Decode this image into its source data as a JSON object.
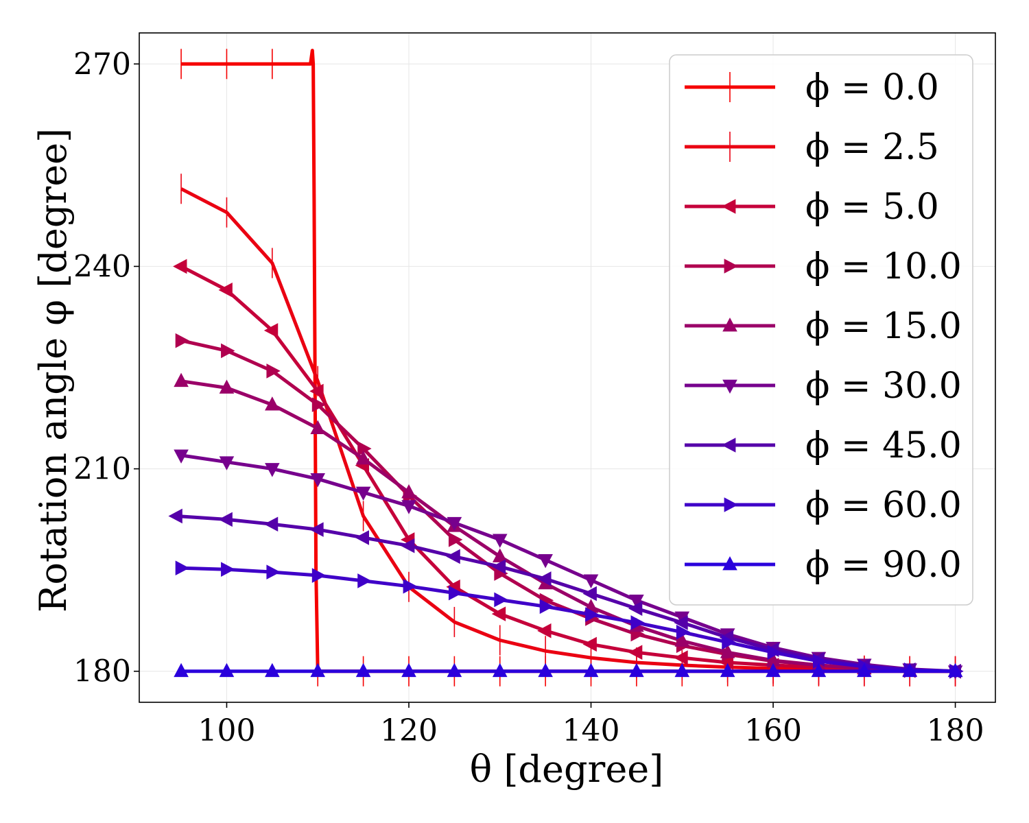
{
  "chart_data": {
    "type": "line",
    "xlabel": "θ [degree]",
    "ylabel": "Rotation angle φ [degree]",
    "xlim": [
      90.4,
      184.4
    ],
    "ylim": [
      175.4,
      274.6
    ],
    "xticks": [
      100,
      120,
      140,
      160,
      180
    ],
    "yticks": [
      180,
      210,
      240,
      270
    ],
    "xtick_labels": [
      "100",
      "120",
      "140",
      "160",
      "180"
    ],
    "ytick_labels": [
      "180",
      "210",
      "240",
      "270"
    ],
    "grid": true,
    "legend_position": "upper-right",
    "series": [
      {
        "name": "ϕ = 0.0",
        "color": "#f50000",
        "marker": "vline",
        "x": [
          95,
          100,
          105,
          109.2,
          109.4,
          109.5,
          109.6,
          109.8,
          110,
          115,
          120,
          125,
          130,
          135,
          140,
          145,
          150,
          155,
          160,
          165,
          170,
          175,
          180
        ],
        "y": [
          270,
          270,
          270,
          270,
          272,
          270,
          250,
          195,
          180,
          180,
          180,
          180,
          180,
          180,
          180,
          180,
          180,
          180,
          180,
          180,
          180,
          180,
          180
        ]
      },
      {
        "name": "ϕ = 2.5",
        "color": "#ea0012",
        "marker": "vline",
        "x": [
          95,
          100,
          105,
          110,
          115,
          120,
          125,
          130,
          135,
          140,
          145,
          150,
          155,
          160,
          165,
          170,
          175,
          180
        ],
        "y": [
          251.5,
          248,
          240.5,
          223,
          203,
          192.5,
          187.3,
          184.6,
          183,
          182,
          181.3,
          180.9,
          180.6,
          180.4,
          180.2,
          180.1,
          180,
          180
        ]
      },
      {
        "name": "ϕ = 5.0",
        "color": "#c5003a",
        "marker": "triangle-left",
        "x": [
          95,
          100,
          105,
          110,
          115,
          120,
          125,
          130,
          135,
          140,
          145,
          150,
          155,
          160,
          165,
          170,
          175,
          180
        ],
        "y": [
          240,
          236.5,
          230.5,
          221.5,
          210.5,
          199.5,
          192.5,
          188.5,
          186,
          184,
          182.8,
          182,
          181.3,
          180.9,
          180.6,
          180.3,
          180.1,
          180
        ]
      },
      {
        "name": "ϕ = 10.0",
        "color": "#b0004f",
        "marker": "triangle-right",
        "x": [
          95,
          100,
          105,
          110,
          115,
          120,
          125,
          130,
          135,
          140,
          145,
          150,
          155,
          160,
          165,
          170,
          175,
          180
        ],
        "y": [
          229,
          227.5,
          224.5,
          219.5,
          213,
          206,
          199.5,
          194.5,
          190.5,
          187.8,
          185.5,
          183.8,
          182.5,
          181.5,
          180.9,
          180.4,
          180.1,
          180
        ]
      },
      {
        "name": "ϕ = 15.0",
        "color": "#9a0068",
        "marker": "triangle-up",
        "x": [
          95,
          100,
          105,
          110,
          115,
          120,
          125,
          130,
          135,
          140,
          145,
          150,
          155,
          160,
          165,
          170,
          175,
          180
        ],
        "y": [
          223,
          222,
          219.5,
          216,
          211.5,
          206.5,
          201.5,
          197,
          193,
          189.5,
          186.7,
          184.5,
          182.8,
          181.6,
          180.9,
          180.4,
          180.1,
          180
        ]
      },
      {
        "name": "ϕ = 30.0",
        "color": "#76008d",
        "marker": "triangle-down",
        "x": [
          95,
          100,
          105,
          110,
          115,
          120,
          125,
          130,
          135,
          140,
          145,
          150,
          155,
          160,
          165,
          170,
          175,
          180
        ],
        "y": [
          212,
          211,
          210,
          208.5,
          206.5,
          204.5,
          202,
          199.5,
          196.5,
          193.5,
          190.5,
          188,
          185.5,
          183.5,
          182,
          181,
          180.3,
          180
        ]
      },
      {
        "name": "ϕ = 45.0",
        "color": "#5500a9",
        "marker": "triangle-left",
        "x": [
          94.5,
          100,
          105,
          110,
          115,
          120,
          125,
          130,
          135,
          140,
          145,
          150,
          155,
          160,
          165,
          170,
          175,
          180
        ],
        "y": [
          203,
          202.5,
          201.8,
          201,
          199.8,
          198.6,
          197,
          195.5,
          193.7,
          191.5,
          189.3,
          187.2,
          185,
          183.2,
          181.8,
          180.8,
          180.2,
          180
        ]
      },
      {
        "name": "ϕ = 60.0",
        "color": "#3f00c8",
        "marker": "triangle-right",
        "x": [
          95,
          100,
          105,
          110,
          115,
          120,
          125,
          130,
          135,
          140,
          145,
          150,
          155,
          160,
          165,
          170,
          175,
          180
        ],
        "y": [
          195.3,
          195.1,
          194.7,
          194.2,
          193.4,
          192.6,
          191.6,
          190.6,
          189.6,
          188.4,
          187.2,
          185.8,
          184.3,
          182.8,
          181.5,
          180.7,
          180.2,
          180
        ]
      },
      {
        "name": "ϕ = 90.0",
        "color": "#2a00dc",
        "marker": "triangle-up",
        "x": [
          95,
          100,
          105,
          110,
          115,
          120,
          125,
          130,
          135,
          140,
          145,
          150,
          155,
          160,
          165,
          170,
          175,
          180
        ],
        "y": [
          180,
          180,
          180,
          180,
          180,
          180,
          180,
          180,
          180,
          180,
          180,
          180,
          180,
          180,
          180,
          180,
          180,
          180
        ]
      }
    ]
  }
}
